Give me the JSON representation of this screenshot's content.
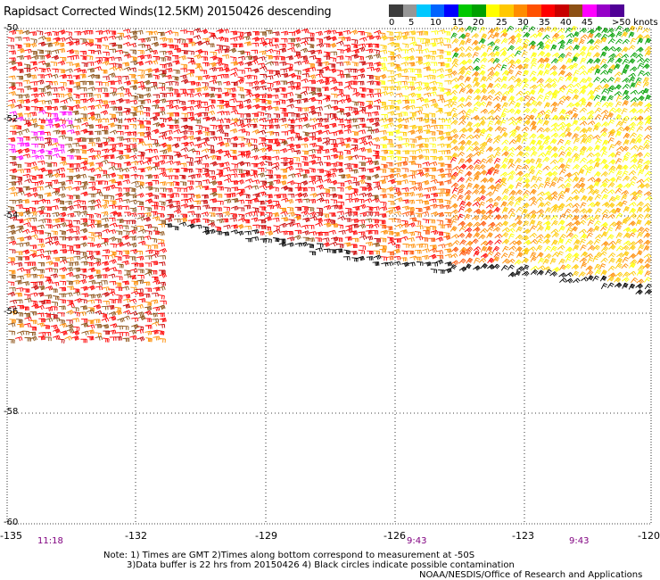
{
  "title": "Rapidsact Corrected Winds(12.5KM) 20150426 descending",
  "colorbar": {
    "colors": [
      "#3c3c3c",
      "#969696",
      "#00c8ff",
      "#0064ff",
      "#0000ff",
      "#00c800",
      "#00a000",
      "#ffff00",
      "#ffc800",
      "#ff8c00",
      "#ff5000",
      "#ff0000",
      "#c80000",
      "#8c5014",
      "#ff00ff",
      "#9600c8",
      "#500096"
    ],
    "labels": [
      "0",
      "5",
      "10",
      "15",
      "20",
      "25",
      "30",
      "35",
      "40",
      "45",
      ">50 knots"
    ]
  },
  "axes": {
    "lat_labels": [
      "-50",
      "-52",
      "-54",
      "-56",
      "-58",
      "-60"
    ],
    "lon_labels": [
      "-135",
      "-132",
      "-129",
      "-126",
      "-123",
      "-120"
    ]
  },
  "times": [
    "11:18",
    "9:43",
    "9:43"
  ],
  "notes": {
    "line1": "Note: 1) Times are GMT 2)Times along bottom correspond to measurement at -50S",
    "line2": "3)Data buffer is 22 hrs from 20150426 4) Black circles indicate possible contamination",
    "credit": "NOAA/NESDIS/Office of Research and Applications"
  },
  "legend_colors": {
    "black": "#000000",
    "brown": "#8c5014",
    "red": "#ff0000",
    "darkred": "#c80000",
    "orange": "#ff8c00",
    "darkorange": "#ff5000",
    "gold": "#ffc800",
    "yellow": "#ffff00",
    "green": "#00a000",
    "magenta": "#ff00ff"
  }
}
